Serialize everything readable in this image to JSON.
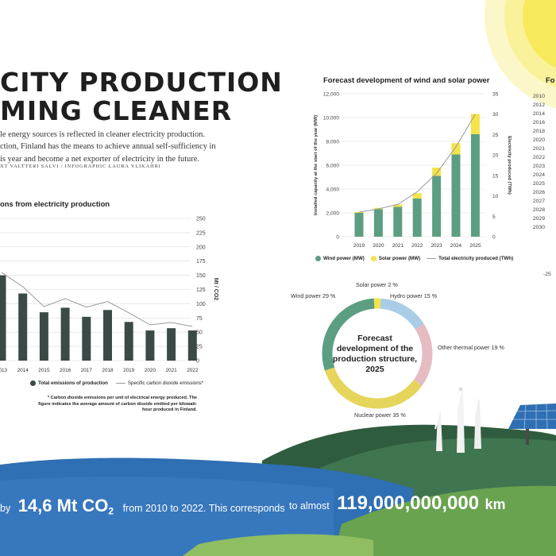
{
  "header": {
    "title_line1": "CITY PRODUCTION",
    "title_line2": "MING CLEANER",
    "intro_lines": [
      "le energy sources is reflected in cleaner electricity production.",
      "ction, Finland has the means to achieve annual self-sufficiency in",
      "is year and become a net exporter of electricity in the future."
    ],
    "credits": "XT VALTTERI SALVI / INFOGRAPHIC LAURA YLIKAHRI"
  },
  "colors": {
    "wind": "#5c9e82",
    "solar": "#f4e34a",
    "hydro": "#a9cde8",
    "thermal": "#e6bcc3",
    "nuclear": "#e5d55b",
    "bar_dark": "#3c4a47",
    "line_gray": "#9a9a9a",
    "water": "#2f6fb3",
    "hill_green": "#3f7550",
    "grass": "#6aa34f",
    "sun": "#f8ef70"
  },
  "chart_data": [
    {
      "type": "bar",
      "title": "ons from electricity production",
      "categories": [
        "2013",
        "2014",
        "2015",
        "2016",
        "2017",
        "2018",
        "2019",
        "2020",
        "2021",
        "2022"
      ],
      "series": [
        {
          "name": "Total emissions of production",
          "values": [
            150,
            118,
            85,
            93,
            77,
            89,
            68,
            53,
            57,
            53
          ]
        },
        {
          "name": "Specific carbon dioxide emissions*",
          "type": "line",
          "values": [
            155,
            130,
            95,
            109,
            94,
            104,
            84,
            63,
            67,
            60
          ]
        }
      ],
      "ylabel": "Mt / CO2",
      "y_ticks": [
        "250",
        "225",
        "200",
        "175",
        "150",
        "125",
        "100",
        "75",
        "50",
        "25",
        "0"
      ],
      "ylim": [
        0,
        250
      ],
      "grid": true,
      "note": "* Carbon dioxide emissions per unit of electrical energy produced. The figure indicates the average amount of carbon dioxide emitted per kilowatt-hour produced in Finland."
    },
    {
      "type": "bar",
      "title": "Forecast development of wind and solar power",
      "categories": [
        "2019",
        "2020",
        "2021",
        "2022",
        "2023",
        "2024",
        "2025"
      ],
      "series": [
        {
          "name": "Wind power (MW)",
          "values": [
            2000,
            2300,
            2500,
            3200,
            5100,
            6900,
            8600
          ]
        },
        {
          "name": "Solar power (MW)",
          "values": [
            80,
            120,
            200,
            450,
            700,
            950,
            1700
          ]
        },
        {
          "name": "Total electricity produced (TWh)",
          "type": "line",
          "axis": "right",
          "values": [
            6,
            6.8,
            7.9,
            11,
            15.5,
            22,
            30
          ]
        }
      ],
      "ylabel": "Installed capacity at the start of the year (MW)",
      "ylabel_right": "Electricity produced (TWh)",
      "y_ticks": [
        "12,000",
        "10,000",
        "8,000",
        "6,000",
        "4,000",
        "2,000",
        "0"
      ],
      "y_ticks_right": [
        "35",
        "30",
        "25",
        "20",
        "15",
        "10",
        "5",
        "0"
      ],
      "ylim": [
        0,
        12000
      ],
      "ylim_right": [
        0,
        35
      ]
    },
    {
      "type": "pie",
      "title": "Forecast development of the production structure, 2025",
      "categories": [
        "Wind power",
        "Solar power",
        "Hydro power",
        "Other thermal power",
        "Nuclear power"
      ],
      "values": [
        29,
        2,
        15,
        19,
        35
      ],
      "labels": [
        "Wind power 29 %",
        "Solar power 2 %",
        "Hydro power 15 %",
        "Other thermal power 19 %",
        "Nuclear power 35 %"
      ]
    }
  ],
  "right_panel": {
    "title_fragment": "Fo",
    "years": [
      "2010",
      "2012",
      "2014",
      "2016",
      "2018",
      "2020",
      "2021",
      "2022",
      "2023",
      "2024",
      "2025",
      "2026",
      "2027",
      "2028",
      "2029",
      "2030"
    ],
    "tick": "-25"
  },
  "bottom": {
    "left_prefix": "by",
    "left_value": "14,6 Mt CO",
    "left_sub": "2",
    "left_suffix": "from 2010 to 2022. This corresponds",
    "right_prefix": "to almost",
    "right_value": "119,000,000,000",
    "right_unit": "km"
  }
}
